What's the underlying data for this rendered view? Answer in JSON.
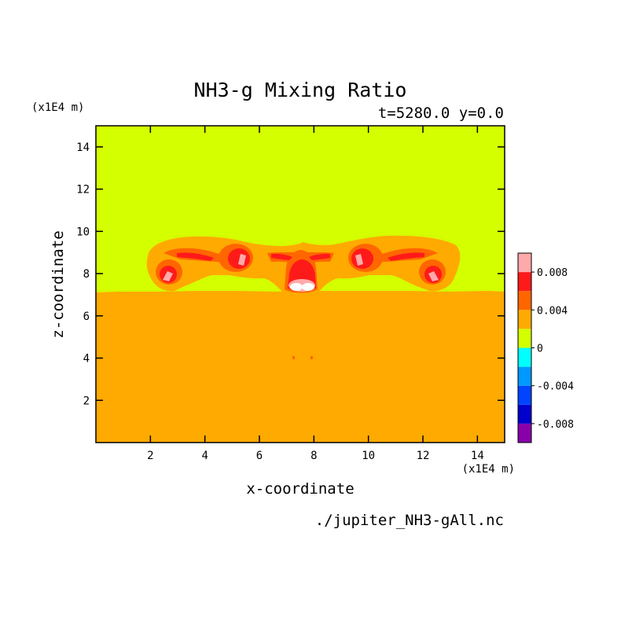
{
  "chart_data": {
    "type": "heatmap",
    "title": "NH3-g Mixing Ratio",
    "subtitle": "t=5280.0 y=0.0",
    "xlabel": "x-coordinate",
    "ylabel": "z-coordinate",
    "x_unit": "(x1E4 m)",
    "y_unit": "(x1E4 m)",
    "source_file": "./jupiter_NH3-gAll.nc",
    "xlim": [
      0,
      15
    ],
    "ylim": [
      0,
      15
    ],
    "x_ticks": [
      2,
      4,
      6,
      8,
      10,
      12,
      14
    ],
    "y_ticks": [
      2,
      4,
      6,
      8,
      10,
      12,
      14
    ],
    "colorbar": {
      "levels": [
        -0.01,
        -0.008,
        -0.006,
        -0.004,
        -0.002,
        0,
        0.002,
        0.004,
        0.006,
        0.008,
        0.01
      ],
      "colors": [
        "#8800aa",
        "#0000cc",
        "#0044ff",
        "#0099ff",
        "#00ffff",
        "#d4ff00",
        "#ffaa00",
        "#ff6600",
        "#ff1a1a",
        "#ffaaaa"
      ],
      "tick_labels": [
        {
          "value": 0.008,
          "label": "0.008"
        },
        {
          "value": 0.004,
          "label": "0.004"
        },
        {
          "value": 0,
          "label": "0"
        },
        {
          "value": -0.004,
          "label": "-0.004"
        },
        {
          "value": -0.008,
          "label": "-0.008"
        }
      ]
    },
    "regions": {
      "upper_value": 0.001,
      "lower_value": 0.003,
      "interface_z": 7.1
    },
    "features": [
      {
        "name": "left-vortex",
        "value": 0.008,
        "x": 2.75,
        "z": 7.9
      },
      {
        "name": "left-mid-vortex",
        "value": 0.008,
        "x": 5.2,
        "z": 8.5
      },
      {
        "name": "center-plume",
        "value": 0.01,
        "x": 7.5,
        "z": 7.6
      },
      {
        "name": "right-mid-vortex",
        "value": 0.008,
        "x": 9.8,
        "z": 8.5
      },
      {
        "name": "right-vortex",
        "value": 0.008,
        "x": 12.25,
        "z": 7.9
      }
    ]
  }
}
